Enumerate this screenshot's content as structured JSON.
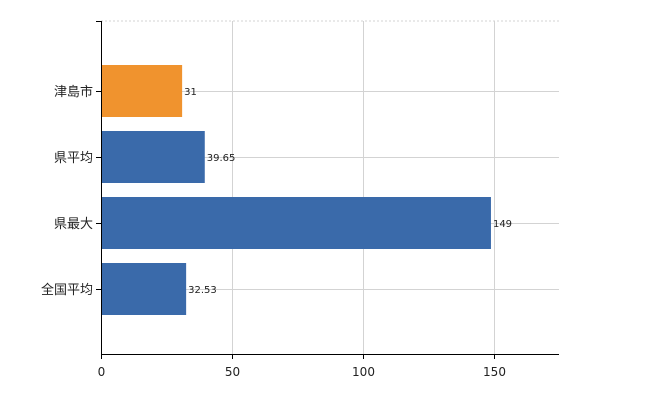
{
  "chart_data": {
    "type": "bar",
    "orientation": "horizontal",
    "categories": [
      "津島市",
      "県平均",
      "県最大",
      "全国平均"
    ],
    "values": [
      31,
      39.65,
      149,
      32.53
    ],
    "value_labels": [
      "31",
      "39.65",
      "149",
      "32.53"
    ],
    "bar_colors": [
      "#f0932e",
      "#3a6aaa",
      "#3a6aaa",
      "#3a6aaa"
    ],
    "xlim": [
      0,
      175
    ],
    "x_ticks": [
      0,
      50,
      100,
      150
    ],
    "x_tick_labels": [
      "0",
      "50",
      "100",
      "150"
    ],
    "grid": true,
    "title": "",
    "xlabel": "",
    "ylabel": ""
  },
  "colors": {
    "highlight": "#f0932e",
    "primary": "#3a6aaa",
    "grid": "#d3d3d3",
    "axis": "#000000"
  }
}
